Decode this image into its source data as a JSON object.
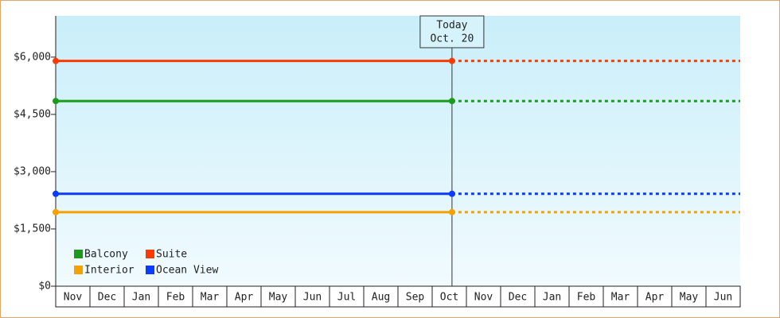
{
  "chart_data": {
    "type": "line",
    "categories": [
      "Nov",
      "Dec",
      "Jan",
      "Feb",
      "Mar",
      "Apr",
      "May",
      "Jun",
      "Jul",
      "Aug",
      "Sep",
      "Oct",
      "Nov",
      "Dec",
      "Jan",
      "Feb",
      "Mar",
      "Apr",
      "May",
      "Jun"
    ],
    "series": [
      {
        "name": "Balcony",
        "color": "#1a9c1a",
        "values": [
          4850,
          4850,
          4850,
          4850,
          4850,
          4850,
          4850,
          4850,
          4850,
          4850,
          4850,
          4850,
          4850,
          4850,
          4850,
          4850,
          4850,
          4850,
          4850,
          4850
        ]
      },
      {
        "name": "Suite",
        "color": "#ff3a00",
        "values": [
          5900,
          5900,
          5900,
          5900,
          5900,
          5900,
          5900,
          5900,
          5900,
          5900,
          5900,
          5900,
          5900,
          5900,
          5900,
          5900,
          5900,
          5900,
          5900,
          5900
        ]
      },
      {
        "name": "Interior",
        "color": "#f5a200",
        "values": [
          1940,
          1940,
          1940,
          1940,
          1940,
          1940,
          1940,
          1940,
          1940,
          1940,
          1940,
          1940,
          1940,
          1940,
          1940,
          1940,
          1940,
          1940,
          1940,
          1940
        ]
      },
      {
        "name": "Ocean View",
        "color": "#0a3cff",
        "values": [
          2420,
          2420,
          2420,
          2420,
          2420,
          2420,
          2420,
          2420,
          2420,
          2420,
          2420,
          2420,
          2420,
          2420,
          2420,
          2420,
          2420,
          2420,
          2420,
          2420
        ]
      }
    ],
    "ylim": [
      0,
      7080
    ],
    "yticks": [
      {
        "value": 0,
        "label": "$0"
      },
      {
        "value": 1500,
        "label": "$1,500"
      },
      {
        "value": 3000,
        "label": "$3,000"
      },
      {
        "value": 4500,
        "label": "$4,500"
      },
      {
        "value": 6000,
        "label": "$6,000"
      }
    ],
    "annotation": {
      "lines": [
        "Today",
        "Oct. 20"
      ],
      "category": 11
    },
    "legend": "lower left"
  }
}
